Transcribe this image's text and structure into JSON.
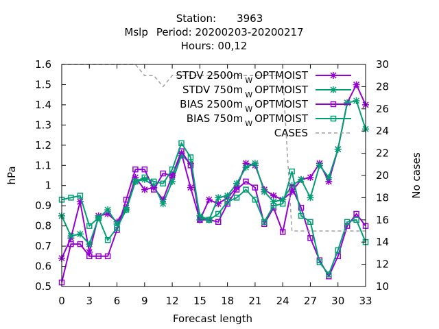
{
  "title": {
    "line1_label": "Station:",
    "line1_value": "3963",
    "line2_param": "Mslp",
    "line2_period": "Period: 20200203-20200217",
    "line3": "Hours:  00,12"
  },
  "chart_data": {
    "type": "line",
    "xlabel": "Forecast length",
    "ylabel": "hPa",
    "y2label": "No cases",
    "xlim": [
      0,
      33
    ],
    "ylim": [
      0.5,
      1.6
    ],
    "y2lim": [
      10,
      30
    ],
    "xticks": [
      "0",
      "3",
      "6",
      "9",
      "12",
      "15",
      "18",
      "21",
      "24",
      "27",
      "30",
      "33"
    ],
    "yticks": [
      "0.5",
      "0.6",
      "0.7",
      "0.8",
      "0.9",
      "1",
      "1.1",
      "1.2",
      "1.3",
      "1.4",
      "1.5",
      "1.6"
    ],
    "y2ticks": [
      "10",
      "12",
      "14",
      "16",
      "18",
      "20",
      "22",
      "24",
      "26",
      "28",
      "30"
    ],
    "x": [
      0,
      1,
      2,
      3,
      4,
      5,
      6,
      7,
      8,
      9,
      10,
      11,
      12,
      13,
      14,
      15,
      16,
      17,
      18,
      19,
      20,
      21,
      22,
      23,
      24,
      25,
      26,
      27,
      28,
      29,
      30,
      31,
      32,
      33
    ],
    "legend_position": "top-right",
    "series": [
      {
        "name": "STDV 2500m",
        "name_sub": "W",
        "name_suffix": "OPTMOIST",
        "color": "#9400d3",
        "marker": "star",
        "axis": "y",
        "values": [
          0.64,
          0.74,
          0.92,
          0.67,
          0.85,
          0.86,
          0.82,
          0.89,
          1.04,
          0.98,
          0.99,
          0.93,
          1.05,
          1.16,
          0.99,
          0.83,
          0.93,
          0.91,
          0.94,
          0.99,
          1.11,
          1.1,
          0.98,
          0.95,
          0.93,
          0.97,
          1.03,
          1.04,
          1.11,
          1.02,
          1.18,
          1.41,
          1.5,
          1.4
        ]
      },
      {
        "name": "STDV 750m",
        "name_sub": "W",
        "name_suffix": "OPTMOIST",
        "color": "#009e73",
        "marker": "star",
        "axis": "y",
        "values": [
          0.85,
          0.75,
          0.76,
          0.71,
          0.84,
          0.88,
          0.81,
          0.88,
          1.02,
          1.03,
          1.0,
          0.91,
          1.02,
          1.15,
          1.11,
          0.85,
          0.83,
          0.94,
          0.95,
          1.01,
          1.09,
          1.11,
          0.97,
          0.92,
          0.93,
          1.0,
          1.03,
          0.94,
          1.1,
          1.04,
          1.18,
          1.41,
          1.42,
          1.28
        ]
      },
      {
        "name": "BIAS 2500m",
        "name_sub": "W",
        "name_suffix": "OPTMOIST",
        "color": "#9400d3",
        "marker": "square",
        "axis": "y",
        "values": [
          0.52,
          0.71,
          0.71,
          0.65,
          0.65,
          0.65,
          0.78,
          0.93,
          1.08,
          1.08,
          0.98,
          1.06,
          1.05,
          1.17,
          1.1,
          0.83,
          0.83,
          0.82,
          0.91,
          0.98,
          1.02,
          0.99,
          0.81,
          0.89,
          0.77,
          0.99,
          0.89,
          0.74,
          0.63,
          0.55,
          0.65,
          0.8,
          0.86,
          0.8
        ]
      },
      {
        "name": "BIAS 750m",
        "name_sub": "W",
        "name_suffix": "OPTMOIST",
        "color": "#009e73",
        "marker": "square",
        "axis": "y",
        "values": [
          0.93,
          0.94,
          0.95,
          0.8,
          0.84,
          0.73,
          0.79,
          0.88,
          1.02,
          1.04,
          1.02,
          1.01,
          1.08,
          1.21,
          1.14,
          0.84,
          0.83,
          0.86,
          0.92,
          0.94,
          0.98,
          0.93,
          0.82,
          0.9,
          0.91,
          1.07,
          0.85,
          0.82,
          0.62,
          0.56,
          0.68,
          0.82,
          0.83,
          0.72
        ]
      },
      {
        "name": "CASES",
        "color": "#a0a0a0",
        "marker": "none",
        "dashed": true,
        "axis": "y2",
        "values": [
          30,
          30,
          30,
          30,
          30,
          30,
          30,
          30,
          30,
          29,
          29,
          28,
          29,
          29,
          29,
          29,
          29,
          29,
          29,
          29,
          29,
          29,
          29,
          29,
          29,
          15,
          15,
          15,
          15,
          15,
          15,
          15,
          15,
          15
        ]
      }
    ]
  }
}
